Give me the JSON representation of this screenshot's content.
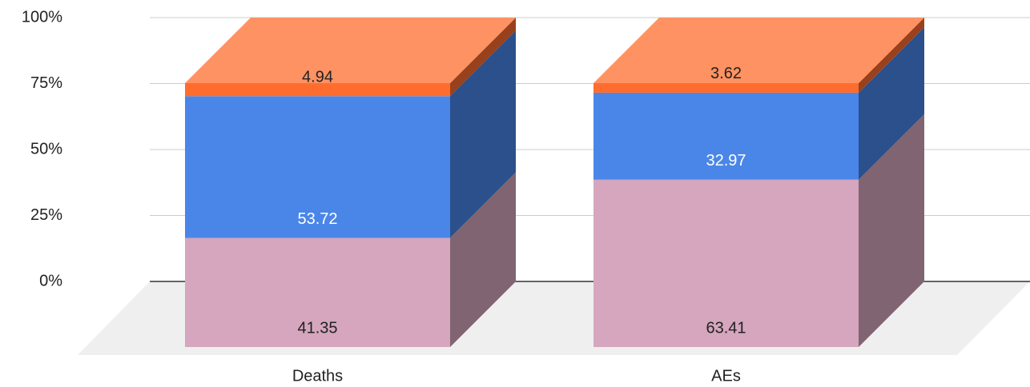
{
  "chart_data": {
    "type": "bar3d_stacked",
    "categories": [
      "Deaths",
      "AEs"
    ],
    "series": [
      {
        "color": "#d5a6bd",
        "values": [
          41.35,
          63.41
        ]
      },
      {
        "color": "#4a86e8",
        "values": [
          53.72,
          32.97
        ]
      },
      {
        "color": "#ff6d2e",
        "values": [
          4.94,
          3.62
        ]
      }
    ],
    "ylim": [
      0,
      100
    ],
    "yticks": [
      {
        "value": 0,
        "label": "0%"
      },
      {
        "value": 25,
        "label": "25%"
      },
      {
        "value": 50,
        "label": "50%"
      },
      {
        "value": 75,
        "label": "75%"
      },
      {
        "value": 100,
        "label": "100%"
      }
    ],
    "grid": true
  }
}
